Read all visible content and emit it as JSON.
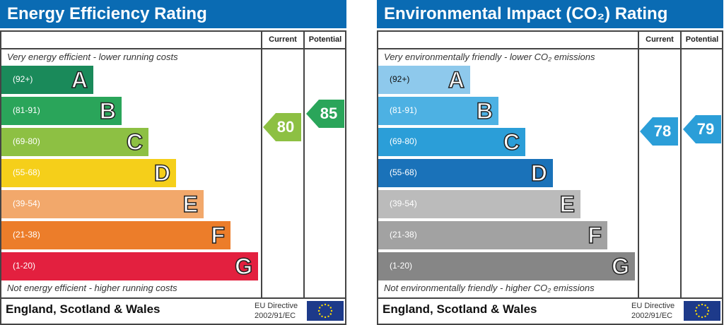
{
  "chart_data": [
    {
      "type": "table",
      "title": "Energy Efficiency Rating",
      "columns": [
        "Current",
        "Potential"
      ],
      "top_note": "Very energy efficient - lower running costs",
      "bottom_note": "Not energy efficient - higher running costs",
      "bands": [
        {
          "letter": "A",
          "range": "(92+)",
          "color": "#1a8a5a"
        },
        {
          "letter": "B",
          "range": "(81-91)",
          "color": "#2aa55a"
        },
        {
          "letter": "C",
          "range": "(69-80)",
          "color": "#8dc043"
        },
        {
          "letter": "D",
          "range": "(55-68)",
          "color": "#f5cf1a"
        },
        {
          "letter": "E",
          "range": "(39-54)",
          "color": "#f2a86b"
        },
        {
          "letter": "F",
          "range": "(21-38)",
          "color": "#ec7d2a"
        },
        {
          "letter": "G",
          "range": "(1-20)",
          "color": "#e3203f"
        }
      ],
      "current": {
        "value": "80",
        "color": "#8dc043"
      },
      "potential": {
        "value": "85",
        "color": "#2aa55a"
      },
      "footer": "England, Scotland & Wales",
      "directive": [
        "EU Directive",
        "2002/91/EC"
      ]
    },
    {
      "type": "table",
      "title": "Environmental Impact (CO₂) Rating",
      "columns": [
        "Current",
        "Potential"
      ],
      "top_note": "Very environmentally friendly - lower CO₂ emissions",
      "bottom_note": "Not environmentally friendly - higher CO₂ emissions",
      "bands": [
        {
          "letter": "A",
          "range": "(92+)",
          "color": "#8ec9ec"
        },
        {
          "letter": "B",
          "range": "(81-91)",
          "color": "#4db1e3"
        },
        {
          "letter": "C",
          "range": "(69-80)",
          "color": "#2b9ed8"
        },
        {
          "letter": "D",
          "range": "(55-68)",
          "color": "#1a72b9"
        },
        {
          "letter": "E",
          "range": "(39-54)",
          "color": "#bbbbbb"
        },
        {
          "letter": "F",
          "range": "(21-38)",
          "color": "#a2a2a2"
        },
        {
          "letter": "G",
          "range": "(1-20)",
          "color": "#868686"
        }
      ],
      "current": {
        "value": "78",
        "color": "#2b9ed8"
      },
      "potential": {
        "value": "79",
        "color": "#2b9ed8"
      },
      "footer": "England, Scotland & Wales",
      "directive": [
        "EU Directive",
        "2002/91/EC"
      ]
    }
  ]
}
